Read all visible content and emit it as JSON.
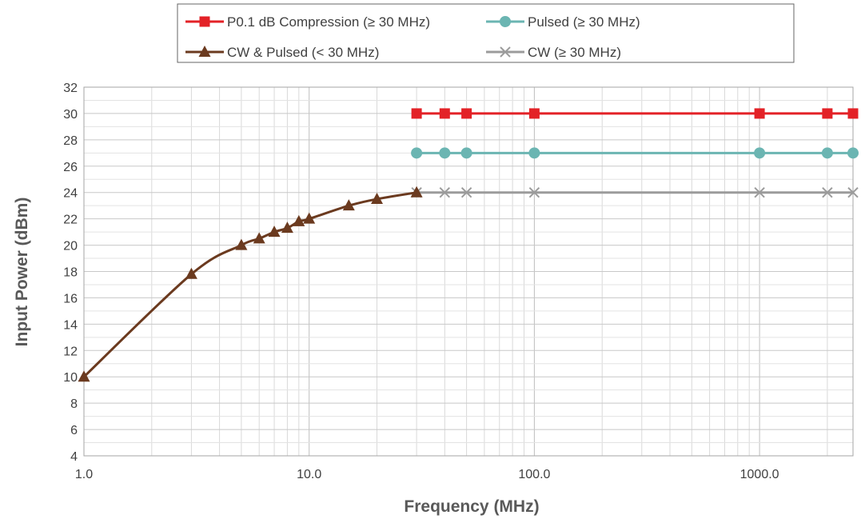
{
  "chart_data": {
    "type": "line",
    "xscale": "log",
    "xlabel": "Frequency (MHz)",
    "ylabel": "Input Power (dBm)",
    "xlim": [
      1,
      2600
    ],
    "ylim": [
      4,
      32
    ],
    "grid": true,
    "legend_position": "top-center",
    "x_tick_labels": [
      {
        "value": 1,
        "label": "1.0"
      },
      {
        "value": 10,
        "label": "10.0"
      },
      {
        "value": 100,
        "label": "100.0"
      },
      {
        "value": 1000,
        "label": "1000.0"
      }
    ],
    "y_ticks": [
      4,
      6,
      8,
      10,
      12,
      14,
      16,
      18,
      20,
      22,
      24,
      26,
      28,
      30,
      32
    ],
    "series": [
      {
        "name": "P0.1 dB Compression (≥ 30 MHz)",
        "color": "#e32227",
        "marker": "square",
        "x": [
          30,
          40,
          50,
          100,
          1000,
          2000,
          2600
        ],
        "y": [
          30,
          30,
          30,
          30,
          30,
          30,
          30
        ]
      },
      {
        "name": "Pulsed (≥ 30 MHz)",
        "color": "#6bb5b2",
        "marker": "circle",
        "x": [
          30,
          40,
          50,
          100,
          1000,
          2000,
          2600
        ],
        "y": [
          27,
          27,
          27,
          27,
          27,
          27,
          27
        ]
      },
      {
        "name": "CW & Pulsed (< 30 MHz)",
        "color": "#6b3a1f",
        "marker": "triangle",
        "x": [
          1,
          3,
          5,
          6,
          7,
          8,
          9,
          10,
          15,
          20,
          30
        ],
        "y": [
          10,
          17.8,
          20,
          20.5,
          21,
          21.3,
          21.8,
          22,
          23,
          23.5,
          24
        ]
      },
      {
        "name": "CW (≥ 30 MHz)",
        "color": "#9b9b9b",
        "marker": "x",
        "x": [
          30,
          40,
          50,
          100,
          1000,
          2000,
          2600
        ],
        "y": [
          24,
          24,
          24,
          24,
          24,
          24,
          24
        ]
      }
    ]
  }
}
